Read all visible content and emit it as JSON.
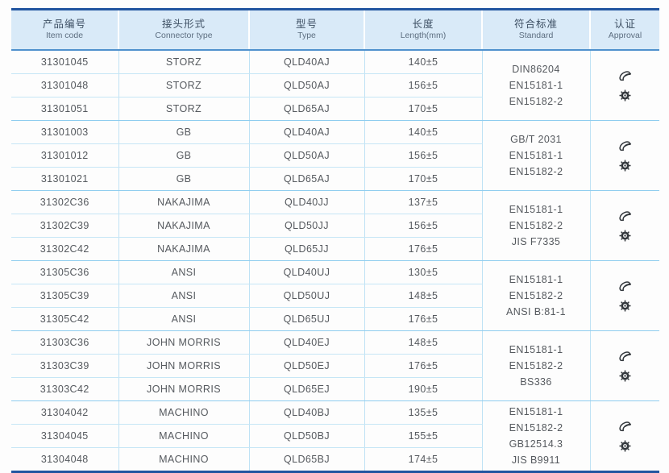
{
  "table": {
    "columns": [
      {
        "zh": "产品编号",
        "en": "Item code"
      },
      {
        "zh": "接头形式",
        "en": "Connector type"
      },
      {
        "zh": "型号",
        "en": "Type"
      },
      {
        "zh": "长度",
        "en": "Length(mm)"
      },
      {
        "zh": "符合标准",
        "en": "Standard"
      },
      {
        "zh": "认证",
        "en": "Approval"
      }
    ],
    "groups": [
      {
        "connector": "STORZ",
        "rows": [
          {
            "code": "31301045",
            "type": "QLD40AJ",
            "length": "140±5"
          },
          {
            "code": "31301048",
            "type": "QLD50AJ",
            "length": "156±5"
          },
          {
            "code": "31301051",
            "type": "QLD65AJ",
            "length": "170±5"
          }
        ],
        "standards": [
          "DIN86204",
          "EN15181-1",
          "EN15182-2"
        ],
        "approval_icons": [
          "brand-logo-icon",
          "wheel-seal-icon"
        ]
      },
      {
        "connector": "GB",
        "rows": [
          {
            "code": "31301003",
            "type": "QLD40AJ",
            "length": "140±5"
          },
          {
            "code": "31301012",
            "type": "QLD50AJ",
            "length": "156±5"
          },
          {
            "code": "31301021",
            "type": "QLD65AJ",
            "length": "170±5"
          }
        ],
        "standards": [
          "GB/T 2031",
          "EN15181-1",
          "EN15182-2"
        ],
        "approval_icons": [
          "brand-logo-icon",
          "wheel-seal-icon"
        ]
      },
      {
        "connector": "NAKAJIMA",
        "rows": [
          {
            "code": "31302C36",
            "type": "QLD40JJ",
            "length": "137±5"
          },
          {
            "code": "31302C39",
            "type": "QLD50JJ",
            "length": "156±5"
          },
          {
            "code": "31302C42",
            "type": "QLD65JJ",
            "length": "176±5"
          }
        ],
        "standards": [
          "EN15181-1",
          "EN15182-2",
          "JIS F7335"
        ],
        "approval_icons": [
          "brand-logo-icon",
          "wheel-seal-icon"
        ]
      },
      {
        "connector": "ANSI",
        "rows": [
          {
            "code": "31305C36",
            "type": "QLD40UJ",
            "length": "130±5"
          },
          {
            "code": "31305C39",
            "type": "QLD50UJ",
            "length": "148±5"
          },
          {
            "code": "31305C42",
            "type": "QLD65UJ",
            "length": "176±5"
          }
        ],
        "standards": [
          "EN15181-1",
          "EN15182-2",
          "ANSI B:81-1"
        ],
        "approval_icons": [
          "brand-logo-icon",
          "wheel-seal-icon"
        ]
      },
      {
        "connector": "JOHN MORRIS",
        "rows": [
          {
            "code": "31303C36",
            "type": "QLD40EJ",
            "length": "148±5"
          },
          {
            "code": "31303C39",
            "type": "QLD50EJ",
            "length": "176±5"
          },
          {
            "code": "31303C42",
            "type": "QLD65EJ",
            "length": "190±5"
          }
        ],
        "standards": [
          "EN15181-1",
          "EN15182-2",
          "BS336"
        ],
        "approval_icons": [
          "brand-logo-icon",
          "wheel-seal-icon"
        ]
      },
      {
        "connector": "MACHINO",
        "rows": [
          {
            "code": "31304042",
            "type": "QLD40BJ",
            "length": "135±5"
          },
          {
            "code": "31304045",
            "type": "QLD50BJ",
            "length": "155±5"
          },
          {
            "code": "31304048",
            "type": "QLD65BJ",
            "length": "174±5"
          }
        ],
        "standards": [
          "EN15181-1",
          "EN15182-2",
          "GB12514.3",
          "JIS B9911"
        ],
        "approval_icons": [
          "brand-logo-icon",
          "wheel-seal-icon"
        ]
      }
    ]
  },
  "colors": {
    "border_dark": "#2155a0",
    "header_bg": "#d9eaf8",
    "header_underline": "#4f91cd",
    "inner_line": "#c6e6f6",
    "group_line": "#8fcdef",
    "text": "#55595e",
    "icon": "#33383d"
  }
}
